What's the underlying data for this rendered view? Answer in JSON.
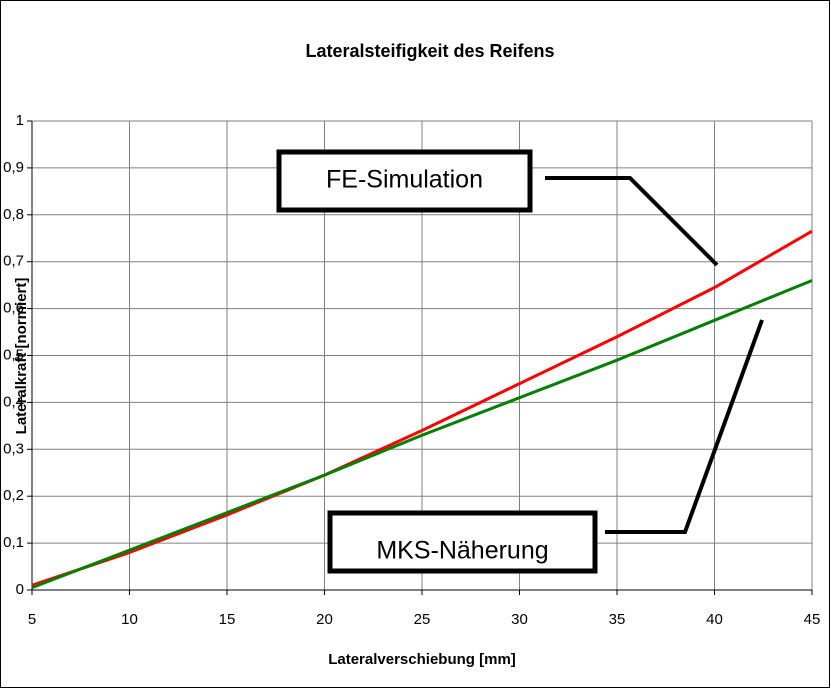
{
  "chart_data": {
    "type": "line",
    "title": "Lateralsteifigkeit des Reifens",
    "x_label": "Lateralverschiebung [mm]",
    "y_label": "Lateralkraft [normiert]",
    "x": [
      5,
      10,
      15,
      20,
      25,
      30,
      35,
      40,
      45
    ],
    "series": [
      {
        "name": "FE-Simulation",
        "color": "#ff0000",
        "values": [
          0.01,
          0.08,
          0.16,
          0.245,
          0.34,
          0.44,
          0.54,
          0.645,
          0.765
        ]
      },
      {
        "name": "MKS-Näherung",
        "color": "#008000",
        "values": [
          0.005,
          0.085,
          0.165,
          0.245,
          0.33,
          0.41,
          0.49,
          0.575,
          0.66
        ]
      }
    ],
    "xlim": [
      5,
      45
    ],
    "xticks": [
      5,
      10,
      15,
      20,
      25,
      30,
      35,
      40,
      45
    ],
    "ylim": [
      0,
      1
    ],
    "yticks": [
      0,
      {
        "value": 0.1,
        "label": "0,1"
      },
      {
        "value": 0.2,
        "label": "0,2"
      },
      {
        "value": 0.3,
        "label": "0,3"
      },
      {
        "value": 0.4,
        "label": "0,4"
      },
      {
        "value": 0.5,
        "label": "0,5"
      },
      {
        "value": 0.6,
        "label": "0,6"
      },
      {
        "value": 0.7,
        "label": "0,7"
      },
      {
        "value": 0.8,
        "label": "0,8"
      },
      {
        "value": 0.9,
        "label": "0,9"
      },
      1
    ],
    "grid": true
  }
}
